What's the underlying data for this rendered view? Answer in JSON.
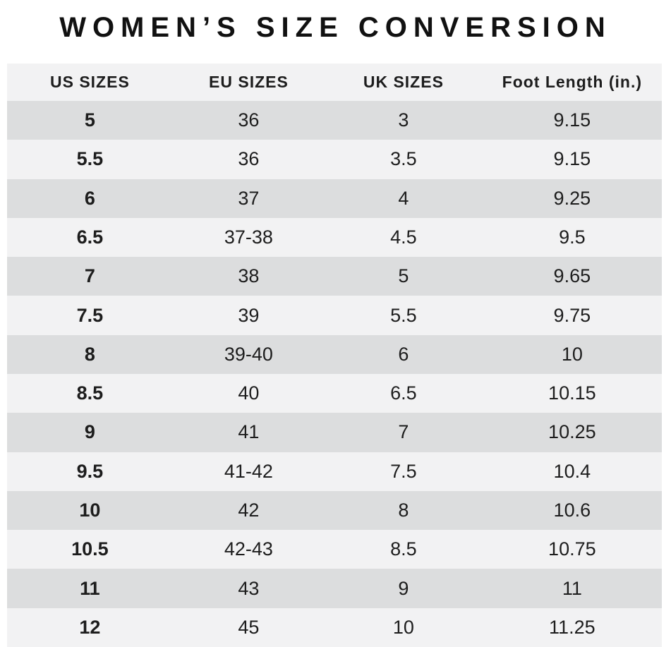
{
  "title": "WOMEN’S SIZE CONVERSION",
  "colors": {
    "row_dark": "#dcddde",
    "row_light": "#f2f2f3",
    "header_bg": "#f2f2f3",
    "text": "#1d1d1d",
    "title": "#111111",
    "page_bg": "#ffffff"
  },
  "chart_data": {
    "type": "table",
    "title": "WOMEN’S SIZE CONVERSION",
    "columns": [
      "US SIZES",
      "EU SIZES",
      "UK SIZES",
      "Foot Length (in.)"
    ],
    "rows": [
      [
        "5",
        "36",
        "3",
        "9.15"
      ],
      [
        "5.5",
        "36",
        "3.5",
        "9.15"
      ],
      [
        "6",
        "37",
        "4",
        "9.25"
      ],
      [
        "6.5",
        "37-38",
        "4.5",
        "9.5"
      ],
      [
        "7",
        "38",
        "5",
        "9.65"
      ],
      [
        "7.5",
        "39",
        "5.5",
        "9.75"
      ],
      [
        "8",
        "39-40",
        "6",
        "10"
      ],
      [
        "8.5",
        "40",
        "6.5",
        "10.15"
      ],
      [
        "9",
        "41",
        "7",
        "10.25"
      ],
      [
        "9.5",
        "41-42",
        "7.5",
        "10.4"
      ],
      [
        "10",
        "42",
        "8",
        "10.6"
      ],
      [
        "10.5",
        "42-43",
        "8.5",
        "10.75"
      ],
      [
        "11",
        "43",
        "9",
        "11"
      ],
      [
        "12",
        "45",
        "10",
        "11.25"
      ]
    ],
    "layout_hints": {
      "row_striping": "odd rows dark gray, even rows light gray",
      "bold_column": "US SIZES",
      "alignment": "center"
    }
  }
}
